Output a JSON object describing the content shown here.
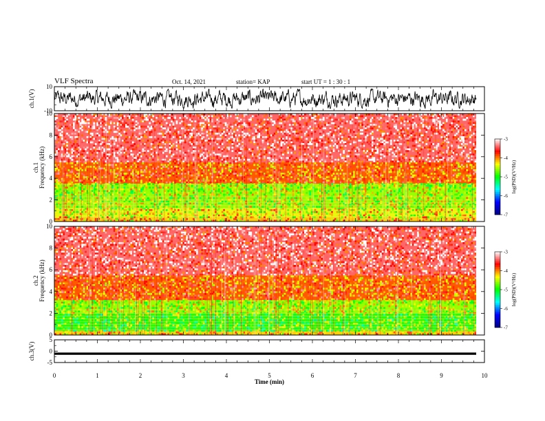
{
  "header": {
    "title": "VLF Spectra",
    "date": "Oct. 14, 2021",
    "station": "station= KAP",
    "start": "start  UT =   1 : 30 : 1"
  },
  "chart_data": [
    {
      "type": "line",
      "panel": "ch1-waveform",
      "ylabel": "ch.1(V)",
      "ylim": [
        -10,
        10
      ],
      "yticks": [
        10,
        -10
      ],
      "xlim": [
        0,
        10
      ],
      "note": "dense noisy waveform, amplitude about -7 to 7 V"
    },
    {
      "type": "heatmap",
      "panel": "ch1-spectrogram",
      "ylabel": "ch.1 Frequency (kHz)",
      "ylim": [
        0,
        10
      ],
      "yticks": [
        0,
        2,
        4,
        6,
        8,
        10
      ],
      "xlim": [
        0,
        10
      ],
      "colorbar": {
        "label": "log(PSD)(V²/Hz)",
        "ticks": [
          -3,
          -4,
          -5,
          -6,
          -7
        ],
        "range": [
          -7,
          -3
        ]
      },
      "bands": [
        {
          "freq": [
            0.0,
            0.4
          ],
          "level": -4.2
        },
        {
          "freq": [
            0.4,
            1.2
          ],
          "level": -4.4
        },
        {
          "freq": [
            1.2,
            3.5
          ],
          "level": -4.6
        },
        {
          "freq": [
            3.5,
            5.5
          ],
          "level": -3.9
        },
        {
          "freq": [
            5.5,
            10.0
          ],
          "level": -3.4
        }
      ]
    },
    {
      "type": "heatmap",
      "panel": "ch2-spectrogram",
      "ylabel": "ch.2 Frequency (kHz)",
      "ylim": [
        0,
        10
      ],
      "yticks": [
        0,
        2,
        4,
        6,
        8,
        10
      ],
      "xlim": [
        0,
        10
      ],
      "colorbar": {
        "label": "log(PSD)(V²/Hz)",
        "ticks": [
          -3,
          -4,
          -5,
          -6,
          -7
        ],
        "range": [
          -7,
          -3
        ]
      },
      "bands": [
        {
          "freq": [
            0.0,
            0.4
          ],
          "level": -4.2
        },
        {
          "freq": [
            0.4,
            2.0
          ],
          "level": -4.9
        },
        {
          "freq": [
            2.0,
            3.2
          ],
          "level": -4.6
        },
        {
          "freq": [
            3.2,
            5.5
          ],
          "level": -3.9
        },
        {
          "freq": [
            5.5,
            10.0
          ],
          "level": -3.4
        }
      ]
    },
    {
      "type": "line",
      "panel": "ch3-waveform",
      "ylabel": "ch.3(V)",
      "ylim": [
        -5,
        5
      ],
      "yticks": [
        5,
        0,
        -5
      ],
      "xlim": [
        0,
        10
      ],
      "note": "flat band around -1 V"
    }
  ],
  "xaxis": {
    "label": "Time  (min)",
    "ticks": [
      0,
      1,
      2,
      3,
      4,
      5,
      6,
      7,
      8,
      9,
      10
    ]
  },
  "colors": {
    "waveform": "#000000",
    "colormap": [
      "#000080",
      "#0000ff",
      "#00ffff",
      "#00ff00",
      "#ffff00",
      "#ff0000",
      "#ffffff"
    ]
  }
}
